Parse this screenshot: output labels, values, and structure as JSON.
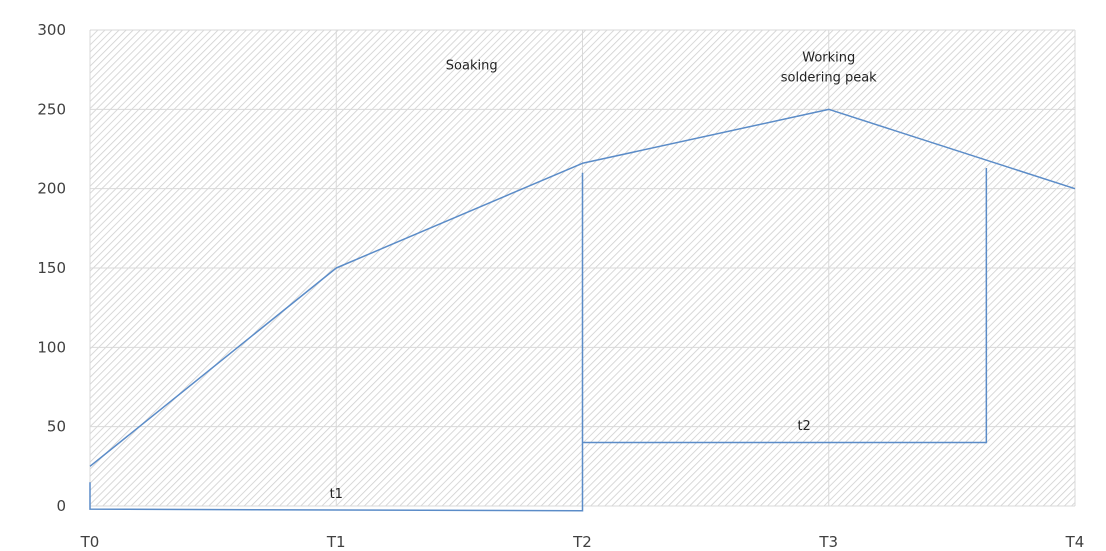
{
  "chart_data": {
    "type": "line",
    "title": "",
    "xlabel": "",
    "ylabel": "",
    "categories": [
      "T0",
      "T1",
      "T2",
      "T3",
      "T4"
    ],
    "ylim": [
      0,
      300
    ],
    "yticks": [
      0,
      50,
      100,
      150,
      200,
      250,
      300
    ],
    "grid": true,
    "legend": "none",
    "series": [
      {
        "values": [
          25,
          150,
          216,
          250,
          200
        ],
        "color": "#5b8cc8"
      }
    ],
    "bracket_lines": [
      {
        "label": "t1",
        "points": [
          [
            0,
            15
          ],
          [
            0,
            -2
          ],
          [
            2,
            -3
          ],
          [
            2,
            210
          ]
        ],
        "color": "#5b8cc8"
      },
      {
        "label": "t2",
        "points": [
          [
            2,
            40
          ],
          [
            3.64,
            40
          ],
          [
            3.64,
            213
          ]
        ],
        "color": "#5b8cc8"
      }
    ],
    "annotations": [
      {
        "lines": [
          "Soaking"
        ],
        "x": 1.55,
        "y": 275
      },
      {
        "lines": [
          "Working",
          "soldering peak"
        ],
        "x": 3.0,
        "y": 280
      },
      {
        "lines": [
          "t1"
        ],
        "x": 1.0,
        "y": 5
      },
      {
        "lines": [
          "t2"
        ],
        "x": 2.9,
        "y": 48
      }
    ],
    "colors": {
      "line": "#5b8cc8",
      "grid": "#d9d9d9",
      "hatch": "#cfcfcf",
      "axis_text": "#404040",
      "annotation_text": "#222222"
    }
  }
}
